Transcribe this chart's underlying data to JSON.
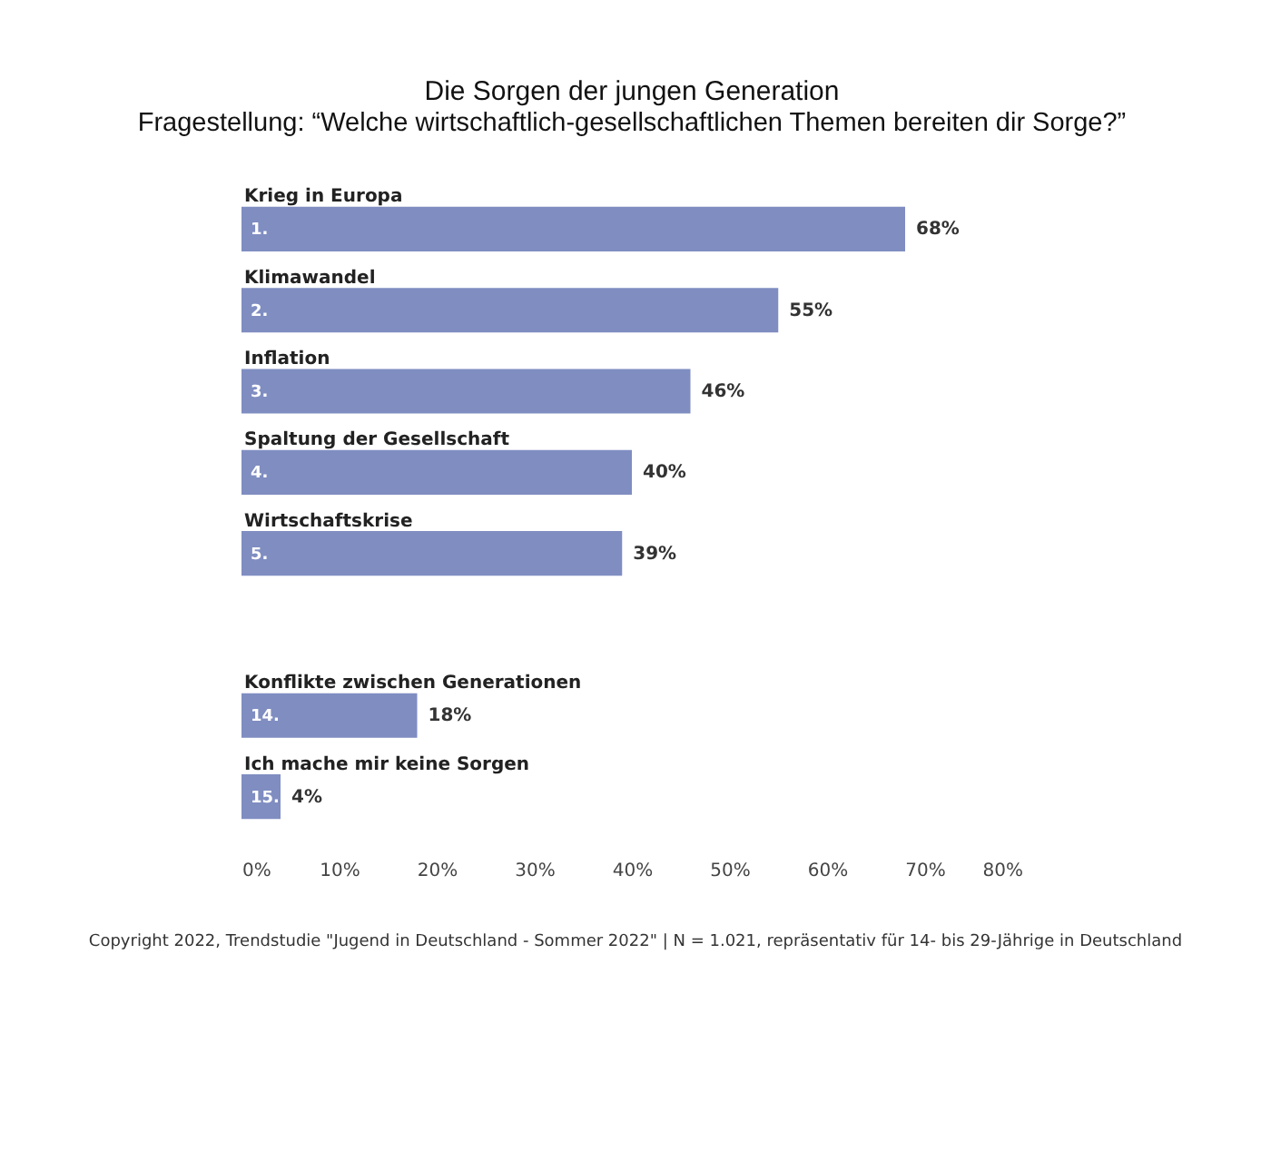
{
  "chart_data": {
    "type": "bar",
    "orientation": "horizontal",
    "title": "Die Sorgen der jungen Generation",
    "subtitle": "Fragestellung: “Welche wirtschaftlich-gesellschaftlichen Themen bereiten dir Sorge?”",
    "categories": [
      "Krieg in Europa",
      "Klimawandel",
      "Inflation",
      "Spaltung der Gesellschaft",
      "Wirtschaftskrise",
      null,
      "Konflikte zwischen Generationen",
      "Ich mache mir keine Sorgen"
    ],
    "values": [
      68,
      55,
      46,
      40,
      39,
      null,
      18,
      4
    ],
    "value_labels": [
      "68%",
      "55%",
      "46%",
      "40%",
      "39%",
      null,
      "18%",
      "4%"
    ],
    "color": "#7f8dc1",
    "xlim": [
      0,
      80
    ],
    "xticks": [
      {
        "value": 0,
        "label": "0%"
      },
      {
        "value": 10,
        "label": "10%"
      },
      {
        "value": 20,
        "label": "20%"
      },
      {
        "value": 30,
        "label": "30%"
      },
      {
        "value": 40,
        "label": "40%"
      },
      {
        "value": 50,
        "label": "50%"
      },
      {
        "value": 60,
        "label": "60%"
      },
      {
        "value": 70,
        "label": "70%"
      },
      {
        "value": 80,
        "label": "80%"
      }
    ],
    "grid": false,
    "annotations": [
      "1.",
      "2.",
      "3.",
      "4.",
      "5.",
      "14.",
      "15.",
      "Copyright 2022, Trendstudie \"Jugend in Deutschland - Sommer 2022\" | N = 1.021, repräsentativ für 14- bis 29-Jährige in Deutschland"
    ]
  }
}
